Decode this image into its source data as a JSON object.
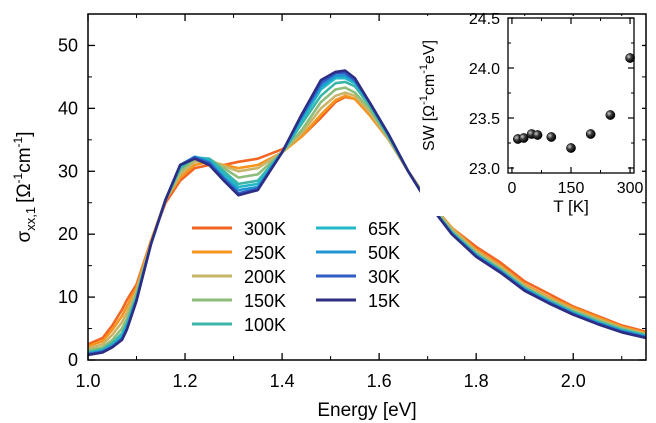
{
  "chart_data": [
    {
      "type": "line",
      "xlabel": "Energy [eV]",
      "ylabel_main": "σ",
      "ylabel_sub": "xx,1",
      "ylabel_unit_parts": [
        "[Ω",
        "-1",
        "cm",
        "-1",
        "]"
      ],
      "xlim": [
        1.0,
        2.15
      ],
      "ylim": [
        0,
        55
      ],
      "xticks": [
        "1.0",
        "1.2",
        "1.4",
        "1.6",
        "1.8",
        "2.0"
      ],
      "yticks": [
        "0",
        "10",
        "20",
        "30",
        "40",
        "50"
      ],
      "legend_position": "lower-left",
      "series": [
        {
          "name": "300K",
          "color": "#f26522",
          "x": [
            1.0,
            1.03,
            1.05,
            1.07,
            1.08,
            1.1,
            1.13,
            1.16,
            1.19,
            1.22,
            1.25,
            1.28,
            1.31,
            1.35,
            1.4,
            1.44,
            1.48,
            1.51,
            1.53,
            1.55,
            1.58,
            1.62,
            1.66,
            1.7,
            1.75,
            1.8,
            1.85,
            1.9,
            1.95,
            2.0,
            2.05,
            2.1,
            2.15
          ],
          "y": [
            2.5,
            3.5,
            5.5,
            8,
            9.5,
            12,
            19,
            25,
            28.5,
            30.5,
            31,
            31,
            31.5,
            32,
            33.5,
            35.5,
            38.5,
            41,
            41.8,
            41.5,
            39,
            35,
            30,
            25.5,
            21,
            18,
            15.5,
            12.5,
            10.5,
            8.5,
            7,
            5.5,
            4.5
          ]
        },
        {
          "name": "250K",
          "color": "#f7941d",
          "x": [
            1.0,
            1.03,
            1.05,
            1.07,
            1.08,
            1.1,
            1.13,
            1.16,
            1.19,
            1.22,
            1.25,
            1.28,
            1.31,
            1.35,
            1.4,
            1.44,
            1.48,
            1.51,
            1.53,
            1.55,
            1.58,
            1.62,
            1.66,
            1.7,
            1.75,
            1.8,
            1.85,
            1.9,
            1.95,
            2.0,
            2.05,
            2.1,
            2.15
          ],
          "y": [
            2.2,
            3,
            4.8,
            7,
            8.5,
            11.5,
            19,
            25.5,
            29,
            31,
            31.5,
            31,
            30.5,
            31,
            33,
            35.5,
            39,
            41.3,
            42,
            41.5,
            39,
            35,
            30,
            25.5,
            21,
            17.5,
            15,
            12,
            10,
            8.3,
            6.8,
            5.3,
            4.3
          ]
        },
        {
          "name": "200K",
          "color": "#c8b56a",
          "x": [
            1.0,
            1.03,
            1.05,
            1.07,
            1.08,
            1.1,
            1.13,
            1.16,
            1.19,
            1.22,
            1.25,
            1.28,
            1.31,
            1.35,
            1.4,
            1.44,
            1.48,
            1.51,
            1.53,
            1.55,
            1.58,
            1.62,
            1.66,
            1.7,
            1.75,
            1.8,
            1.85,
            1.9,
            1.95,
            2.0,
            2.05,
            2.1,
            2.15
          ],
          "y": [
            1.8,
            2.5,
            4,
            6,
            7.5,
            11,
            18.5,
            25.5,
            29.5,
            31.5,
            31.8,
            30.8,
            30,
            30.5,
            33,
            36,
            40,
            42,
            42.5,
            42,
            39.5,
            35,
            30,
            25.5,
            20.8,
            17.3,
            14.8,
            11.8,
            9.8,
            8,
            6.5,
            5.1,
            4.1
          ]
        },
        {
          "name": "150K",
          "color": "#8dbd7a",
          "x": [
            1.0,
            1.03,
            1.05,
            1.07,
            1.08,
            1.1,
            1.13,
            1.16,
            1.19,
            1.22,
            1.25,
            1.28,
            1.31,
            1.35,
            1.4,
            1.44,
            1.48,
            1.51,
            1.53,
            1.55,
            1.58,
            1.62,
            1.66,
            1.7,
            1.75,
            1.8,
            1.85,
            1.9,
            1.95,
            2.0,
            2.05,
            2.1,
            2.15
          ],
          "y": [
            1.5,
            2,
            3.2,
            5,
            6.5,
            10.5,
            18.5,
            25.5,
            30,
            32,
            32,
            30.5,
            29,
            29.5,
            33,
            36.5,
            41,
            43,
            43.3,
            42.5,
            40,
            35.3,
            30,
            25.3,
            20.5,
            17,
            14.5,
            11.6,
            9.6,
            7.8,
            6.3,
            5,
            4
          ]
        },
        {
          "name": "100K",
          "color": "#3bb5a8",
          "x": [
            1.0,
            1.03,
            1.05,
            1.07,
            1.08,
            1.1,
            1.13,
            1.16,
            1.19,
            1.22,
            1.25,
            1.28,
            1.31,
            1.35,
            1.4,
            1.44,
            1.48,
            1.51,
            1.53,
            1.55,
            1.58,
            1.62,
            1.66,
            1.7,
            1.75,
            1.8,
            1.85,
            1.9,
            1.95,
            2.0,
            2.05,
            2.1,
            2.15
          ],
          "y": [
            1.2,
            1.7,
            2.7,
            4.2,
            5.8,
            10,
            18.5,
            25.5,
            30.5,
            32.2,
            32,
            30,
            28,
            28.5,
            33,
            37.5,
            42,
            44,
            44.2,
            43.5,
            40.5,
            35.5,
            30,
            25,
            20.3,
            16.8,
            14.3,
            11.4,
            9.4,
            7.6,
            6.1,
            4.8,
            3.9
          ]
        },
        {
          "name": "65K",
          "color": "#22b8c8",
          "x": [
            1.0,
            1.03,
            1.05,
            1.07,
            1.08,
            1.1,
            1.13,
            1.16,
            1.19,
            1.22,
            1.25,
            1.28,
            1.31,
            1.35,
            1.4,
            1.44,
            1.48,
            1.51,
            1.53,
            1.55,
            1.58,
            1.62,
            1.66,
            1.7,
            1.75,
            1.8,
            1.85,
            1.9,
            1.95,
            2.0,
            2.05,
            2.1,
            2.15
          ],
          "y": [
            1.1,
            1.5,
            2.4,
            3.8,
            5.4,
            9.8,
            18.5,
            25.5,
            30.8,
            32.3,
            31.8,
            29.5,
            27.5,
            28,
            33,
            38,
            43,
            44.8,
            44.8,
            44,
            41,
            35.8,
            30,
            25,
            20.2,
            16.7,
            14.2,
            11.3,
            9.3,
            7.5,
            6,
            4.7,
            3.8
          ]
        },
        {
          "name": "50K",
          "color": "#1f96d2",
          "x": [
            1.0,
            1.03,
            1.05,
            1.07,
            1.08,
            1.1,
            1.13,
            1.16,
            1.19,
            1.22,
            1.25,
            1.28,
            1.31,
            1.35,
            1.4,
            1.44,
            1.48,
            1.51,
            1.53,
            1.55,
            1.58,
            1.62,
            1.66,
            1.7,
            1.75,
            1.8,
            1.85,
            1.9,
            1.95,
            2.0,
            2.05,
            2.1,
            2.15
          ],
          "y": [
            1.0,
            1.4,
            2.2,
            3.5,
            5.1,
            9.6,
            18.5,
            25.5,
            31,
            32.3,
            31.5,
            29,
            27,
            27.5,
            33,
            38.5,
            43.5,
            45.2,
            45.2,
            44.3,
            41,
            35.8,
            30,
            25,
            20.1,
            16.6,
            14.1,
            11.2,
            9.2,
            7.4,
            5.9,
            4.6,
            3.7
          ]
        },
        {
          "name": "30K",
          "color": "#2f5bc4",
          "x": [
            1.0,
            1.03,
            1.05,
            1.07,
            1.08,
            1.1,
            1.13,
            1.16,
            1.19,
            1.22,
            1.25,
            1.28,
            1.31,
            1.35,
            1.4,
            1.44,
            1.48,
            1.51,
            1.53,
            1.55,
            1.58,
            1.62,
            1.66,
            1.7,
            1.75,
            1.8,
            1.85,
            1.9,
            1.95,
            2.0,
            2.05,
            2.1,
            2.15
          ],
          "y": [
            0.9,
            1.3,
            2.1,
            3.3,
            4.9,
            9.5,
            18.5,
            25.5,
            31,
            32.2,
            31.3,
            28.8,
            26.5,
            27.2,
            33,
            38.8,
            44,
            45.6,
            45.6,
            44.5,
            41,
            35.8,
            30,
            25,
            20,
            16.5,
            14,
            11.1,
            9.1,
            7.3,
            5.8,
            4.5,
            3.6
          ]
        },
        {
          "name": "15K",
          "color": "#2d2e83",
          "x": [
            1.0,
            1.03,
            1.05,
            1.07,
            1.08,
            1.1,
            1.13,
            1.16,
            1.19,
            1.22,
            1.25,
            1.28,
            1.31,
            1.35,
            1.4,
            1.44,
            1.48,
            1.51,
            1.53,
            1.55,
            1.58,
            1.62,
            1.66,
            1.7,
            1.75,
            1.8,
            1.85,
            1.9,
            1.95,
            2.0,
            2.05,
            2.1,
            2.15
          ],
          "y": [
            0.8,
            1.2,
            2,
            3.2,
            4.8,
            9.4,
            18.5,
            25.5,
            31,
            32,
            31,
            28.5,
            26.2,
            27,
            33,
            39,
            44.5,
            45.8,
            46,
            44.8,
            41,
            35.8,
            30,
            25,
            20,
            16.4,
            13.9,
            11,
            9,
            7.2,
            5.7,
            4.4,
            3.5
          ]
        }
      ]
    },
    {
      "type": "scatter",
      "xlabel": "T [K]",
      "ylabel_main": "SW",
      "ylabel_unit_parts": [
        "[Ω",
        "-1",
        "cm",
        "-1",
        "eV]"
      ],
      "xlim": [
        -10,
        310
      ],
      "ylim": [
        22.95,
        24.5
      ],
      "xticks": [
        "0",
        "150",
        "300"
      ],
      "yticks": [
        "23.0",
        "23.5",
        "24.0",
        "24.5"
      ],
      "x": [
        15,
        30,
        50,
        65,
        100,
        150,
        200,
        250,
        300
      ],
      "y": [
        23.29,
        23.3,
        23.34,
        23.33,
        23.31,
        23.2,
        23.34,
        23.53,
        24.1
      ]
    }
  ]
}
